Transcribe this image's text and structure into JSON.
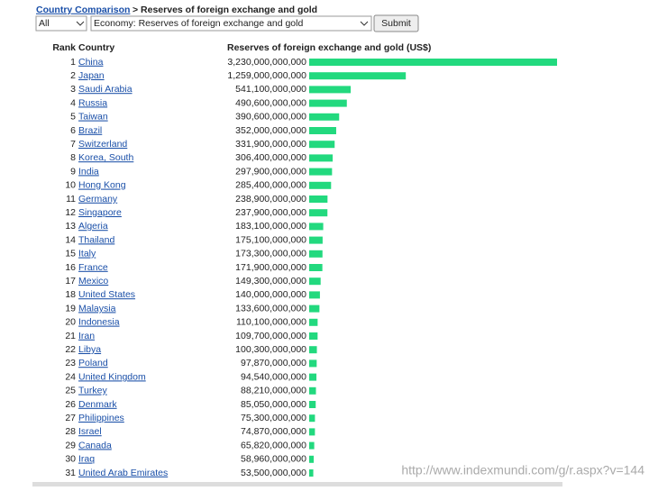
{
  "breadcrumb": {
    "link": "Country Comparison",
    "rest": "> Reserves of foreign exchange and gold"
  },
  "filters": {
    "region": "All",
    "field": "Economy: Reserves of foreign exchange and gold",
    "button": "Submit"
  },
  "table": {
    "headers": [
      "Rank",
      "Country",
      "Reserves of foreign exchange and gold (US$)"
    ],
    "bar_color": "#22d97e",
    "rows": [
      {
        "rank": 1,
        "country": "China",
        "value": 3230000000000,
        "value_label": "3,230,000,000,000"
      },
      {
        "rank": 2,
        "country": "Japan",
        "value": 1259000000000,
        "value_label": "1,259,000,000,000"
      },
      {
        "rank": 3,
        "country": "Saudi Arabia",
        "value": 541100000000,
        "value_label": "541,100,000,000"
      },
      {
        "rank": 4,
        "country": "Russia",
        "value": 490600000000,
        "value_label": "490,600,000,000"
      },
      {
        "rank": 5,
        "country": "Taiwan",
        "value": 390600000000,
        "value_label": "390,600,000,000"
      },
      {
        "rank": 6,
        "country": "Brazil",
        "value": 352000000000,
        "value_label": "352,000,000,000"
      },
      {
        "rank": 7,
        "country": "Switzerland",
        "value": 331900000000,
        "value_label": "331,900,000,000"
      },
      {
        "rank": 8,
        "country": "Korea, South",
        "value": 306400000000,
        "value_label": "306,400,000,000"
      },
      {
        "rank": 9,
        "country": "India",
        "value": 297900000000,
        "value_label": "297,900,000,000"
      },
      {
        "rank": 10,
        "country": "Hong Kong",
        "value": 285400000000,
        "value_label": "285,400,000,000"
      },
      {
        "rank": 11,
        "country": "Germany",
        "value": 238900000000,
        "value_label": "238,900,000,000"
      },
      {
        "rank": 12,
        "country": "Singapore",
        "value": 237900000000,
        "value_label": "237,900,000,000"
      },
      {
        "rank": 13,
        "country": "Algeria",
        "value": 183100000000,
        "value_label": "183,100,000,000"
      },
      {
        "rank": 14,
        "country": "Thailand",
        "value": 175100000000,
        "value_label": "175,100,000,000"
      },
      {
        "rank": 15,
        "country": "Italy",
        "value": 173300000000,
        "value_label": "173,300,000,000"
      },
      {
        "rank": 16,
        "country": "France",
        "value": 171900000000,
        "value_label": "171,900,000,000"
      },
      {
        "rank": 17,
        "country": "Mexico",
        "value": 149300000000,
        "value_label": "149,300,000,000"
      },
      {
        "rank": 18,
        "country": "United States",
        "value": 140000000000,
        "value_label": "140,000,000,000"
      },
      {
        "rank": 19,
        "country": "Malaysia",
        "value": 133600000000,
        "value_label": "133,600,000,000"
      },
      {
        "rank": 20,
        "country": "Indonesia",
        "value": 110100000000,
        "value_label": "110,100,000,000"
      },
      {
        "rank": 21,
        "country": "Iran",
        "value": 109700000000,
        "value_label": "109,700,000,000"
      },
      {
        "rank": 22,
        "country": "Libya",
        "value": 100300000000,
        "value_label": "100,300,000,000"
      },
      {
        "rank": 23,
        "country": "Poland",
        "value": 97870000000,
        "value_label": "97,870,000,000"
      },
      {
        "rank": 24,
        "country": "United Kingdom",
        "value": 94540000000,
        "value_label": "94,540,000,000"
      },
      {
        "rank": 25,
        "country": "Turkey",
        "value": 88210000000,
        "value_label": "88,210,000,000"
      },
      {
        "rank": 26,
        "country": "Denmark",
        "value": 85050000000,
        "value_label": "85,050,000,000"
      },
      {
        "rank": 27,
        "country": "Philippines",
        "value": 75300000000,
        "value_label": "75,300,000,000"
      },
      {
        "rank": 28,
        "country": "Israel",
        "value": 74870000000,
        "value_label": "74,870,000,000"
      },
      {
        "rank": 29,
        "country": "Canada",
        "value": 65820000000,
        "value_label": "65,820,000,000"
      },
      {
        "rank": 30,
        "country": "Iraq",
        "value": 58960000000,
        "value_label": "58,960,000,000"
      },
      {
        "rank": 31,
        "country": "United Arab Emirates",
        "value": 53500000000,
        "value_label": "53,500,000,000"
      }
    ]
  },
  "footer_url": "http://www.indexmundi.com/g/r.aspx?v=144"
}
